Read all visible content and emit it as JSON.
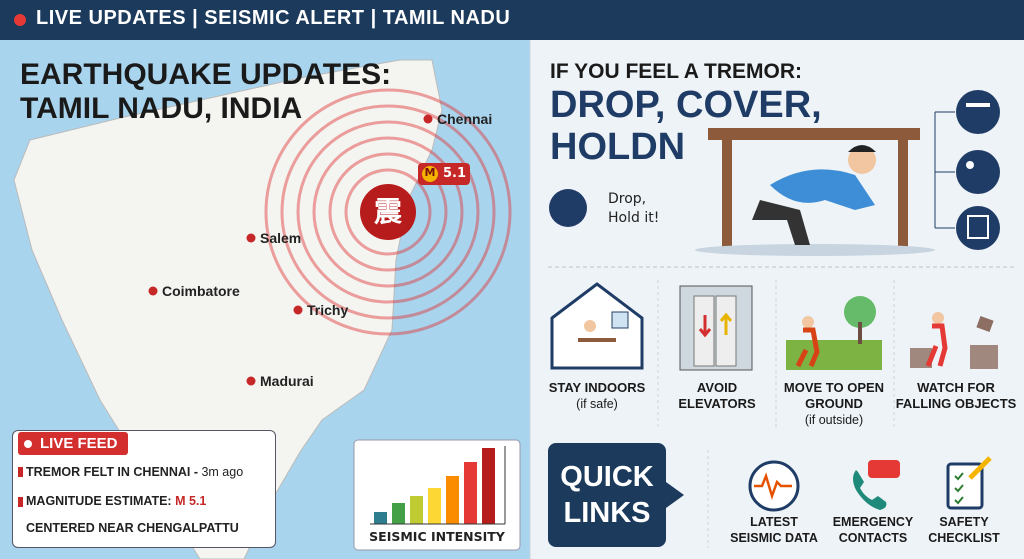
{
  "banner": {
    "text": "LIVE UPDATES | SEISMIC ALERT | TAMIL NADU"
  },
  "map": {
    "title_lines": [
      "EARTHQUAKE UPDATES:",
      "TAMIL NADU, INDIA"
    ],
    "cities": [
      "Chennai",
      "Salem",
      "Coimbatore",
      "Trichy",
      "Madurai"
    ],
    "epicenter_symbol": "震",
    "magnitude_badge": {
      "icon": "M",
      "value": "5.1"
    }
  },
  "live_feed": {
    "label": "LIVE FEED",
    "items": [
      {
        "text": "TREMOR FELT IN CHENNAI -",
        "detail": "3m ago"
      },
      {
        "text": "MAGNITUDE ESTIMATE:",
        "detail": "M 5.1"
      },
      {
        "text": "CENTERED NEAR CHENGALPATTU"
      }
    ]
  },
  "intensity": {
    "label": "SEISMIC INTENSITY"
  },
  "tremor": {
    "heading": "IF YOU FEEL A TREMOR:",
    "title_lines": [
      "DROP, COVER,",
      "HOLDN"
    ],
    "tip_lines": [
      "Drop,",
      "Hold it!"
    ]
  },
  "actions": [
    {
      "label": "STAY INDOORS",
      "note": "(if safe)"
    },
    {
      "label": "AVOID ELEVATORS"
    },
    {
      "label": "MOVE TO OPEN GROUND",
      "note": "(if outside)"
    },
    {
      "label": "WATCH FOR FALLING OBJECTS"
    }
  ],
  "quick_links": {
    "title": "QUICK LINKS",
    "links": [
      "LATEST SEISMIC DATA",
      "EMERGENCY CONTACTS",
      "SAFETY CHECKLIST"
    ]
  }
}
